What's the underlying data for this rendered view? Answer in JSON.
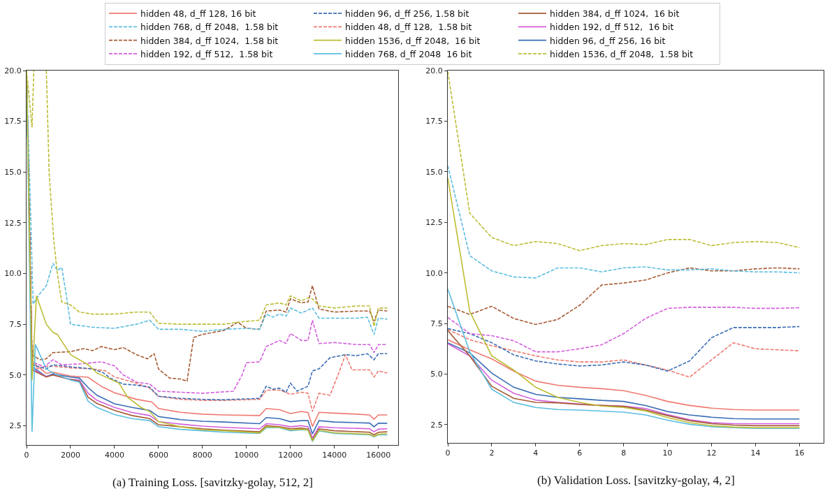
{
  "chart_data": [
    {
      "type": "line",
      "annotations": [
        "(a) Training Loss. [savitzky-golay, 512, 2]"
      ],
      "xlim": [
        0,
        16900
      ],
      "ylim": [
        1.55,
        20
      ],
      "xticks": [
        0,
        2000,
        4000,
        6000,
        8000,
        10000,
        12000,
        14000,
        16000
      ],
      "yticks": [
        {
          "value": 2.5,
          "label": "2.5"
        },
        {
          "value": 5,
          "label": "5.0"
        },
        {
          "value": 7.5,
          "label": "7.5"
        },
        {
          "value": 10,
          "label": "10.0"
        },
        {
          "value": 12.5,
          "label": "12.5"
        },
        {
          "value": 15,
          "label": "15.0"
        },
        {
          "value": 17.5,
          "label": "17.5"
        },
        {
          "value": 20,
          "label": "20.0"
        }
      ],
      "grid": false,
      "legend": "top",
      "marker": "none",
      "series": [
        {
          "name": "hidden 48, d_ff 128, 16 bit",
          "color": "#f07a72",
          "line_style": "solid",
          "x": [
            0,
            250,
            900,
            1200,
            2000,
            2800,
            3400,
            4000,
            5000,
            5700,
            6000,
            7000,
            8000,
            9000,
            10600,
            10900,
            11500,
            12000,
            12500,
            12800,
            13000,
            13300,
            14000,
            15000,
            15600,
            15800,
            16000,
            16400
          ],
          "values": [
            20,
            5.65,
            5.08,
            5.14,
            4.95,
            4.89,
            4.44,
            4.12,
            3.8,
            3.67,
            3.35,
            3.16,
            3.07,
            3.03,
            3.0,
            3.35,
            3.29,
            3.1,
            3.2,
            3.15,
            2.46,
            3.16,
            3.12,
            3.07,
            3.03,
            2.82,
            3.03,
            3.03
          ]
        },
        {
          "name": "hidden 48, d_ff 128,  1.58 bit",
          "color": "#f07a72",
          "line_style": "dashed",
          "x": [
            0,
            250,
            500,
            1000,
            2000,
            3000,
            3600,
            4000,
            5000,
            5600,
            6000,
            7000,
            8000,
            9000,
            10600,
            10900,
            11500,
            12000,
            12500,
            12800,
            13000,
            13300,
            13800,
            14200,
            14500,
            14800,
            15600,
            15800,
            16000,
            16400
          ],
          "values": [
            20,
            5.6,
            5.3,
            5.45,
            5.35,
            5.3,
            5.2,
            4.9,
            4.6,
            4.35,
            3.95,
            3.8,
            3.75,
            3.75,
            3.8,
            4.25,
            4.25,
            4.05,
            4.15,
            4.1,
            3.2,
            4.1,
            4.0,
            5.1,
            6.0,
            5.25,
            5.25,
            4.9,
            5.2,
            5.1
          ]
        },
        {
          "name": "hidden 96, d_ff 256, 16 bit",
          "color": "#3a6db5",
          "line_style": "solid",
          "x": [
            0,
            250,
            900,
            1200,
            2000,
            2400,
            2800,
            3200,
            4000,
            4800,
            5600,
            6000,
            7000,
            8000,
            9000,
            10600,
            10900,
            11500,
            12000,
            12500,
            12800,
            13000,
            13300,
            14000,
            15600,
            15800,
            16000,
            16400
          ],
          "values": [
            20,
            5.4,
            4.92,
            5.05,
            4.9,
            4.85,
            4.38,
            4.0,
            3.58,
            3.4,
            3.25,
            2.95,
            2.8,
            2.72,
            2.68,
            2.6,
            2.9,
            2.85,
            2.7,
            2.75,
            2.75,
            2.1,
            2.75,
            2.68,
            2.63,
            2.45,
            2.62,
            2.62
          ]
        },
        {
          "name": "hidden 96, d_ff 256, 1.58 bit",
          "color": "#3a6db5",
          "line_style": "dashed",
          "x": [
            0,
            250,
            900,
            1200,
            2000,
            3000,
            3500,
            3800,
            4400,
            5000,
            5600,
            6000,
            7000,
            8000,
            9000,
            10600,
            10900,
            11200,
            11500,
            11800,
            12000,
            12300,
            12800,
            13000,
            13300,
            13800,
            14500,
            15000,
            15500,
            15800,
            16000,
            16400
          ],
          "values": [
            20,
            5.5,
            5.3,
            5.5,
            5.4,
            5.3,
            5.1,
            4.85,
            4.55,
            4.5,
            4.4,
            3.95,
            3.85,
            3.8,
            3.78,
            3.85,
            4.45,
            4.3,
            4.35,
            4.15,
            4.6,
            4.2,
            4.45,
            5.2,
            5.3,
            5.85,
            6.0,
            5.95,
            6.05,
            5.75,
            6.05,
            6.05
          ]
        },
        {
          "name": "hidden 192, d_ff 512,  16 bit",
          "color": "#d35fdc",
          "line_style": "solid",
          "x": [
            0,
            250,
            900,
            1200,
            2000,
            2400,
            2800,
            3200,
            4000,
            4800,
            5600,
            6000,
            7000,
            8000,
            9000,
            10600,
            10900,
            11500,
            12000,
            12500,
            12800,
            13000,
            13300,
            14000,
            15600,
            15800,
            16000,
            16400
          ],
          "values": [
            20,
            5.3,
            4.92,
            5.0,
            4.78,
            4.75,
            4.1,
            3.75,
            3.4,
            3.15,
            3.0,
            2.7,
            2.58,
            2.48,
            2.42,
            2.35,
            2.6,
            2.55,
            2.45,
            2.5,
            2.45,
            1.9,
            2.45,
            2.4,
            2.35,
            2.2,
            2.33,
            2.35
          ]
        },
        {
          "name": "hidden 192, d_ff 512,  1.58 bit",
          "color": "#d35fdc",
          "line_style": "dashed",
          "x": [
            0,
            250,
            800,
            1200,
            1600,
            2500,
            3400,
            4000,
            4400,
            5000,
            5600,
            6000,
            7000,
            8000,
            9400,
            9800,
            10000,
            10600,
            10900,
            11500,
            11800,
            12000,
            12500,
            12800,
            13000,
            13300,
            14000,
            15000,
            15600,
            15800,
            16000,
            16400
          ],
          "values": [
            20,
            5.65,
            5.4,
            5.75,
            5.5,
            5.55,
            5.65,
            5.45,
            5.0,
            4.65,
            4.55,
            4.2,
            4.15,
            4.1,
            4.2,
            5.0,
            5.6,
            5.65,
            6.4,
            6.7,
            6.55,
            7.05,
            6.7,
            6.7,
            7.7,
            6.55,
            6.6,
            6.5,
            6.5,
            6.1,
            6.5,
            6.5
          ]
        },
        {
          "name": "hidden 384, d_ff 1024,  16 bit",
          "color": "#a65a33",
          "line_style": "solid",
          "x": [
            0,
            250,
            900,
            1200,
            2000,
            2400,
            2800,
            3200,
            4000,
            4800,
            5600,
            6000,
            7000,
            8000,
            9000,
            10600,
            10900,
            11500,
            12000,
            12500,
            12800,
            13000,
            13300,
            14000,
            15600,
            15800,
            16000,
            16400
          ],
          "values": [
            20,
            5.25,
            4.9,
            5.0,
            4.78,
            4.7,
            3.9,
            3.6,
            3.25,
            3.0,
            2.85,
            2.55,
            2.45,
            2.35,
            2.28,
            2.2,
            2.5,
            2.45,
            2.35,
            2.38,
            2.33,
            1.8,
            2.35,
            2.25,
            2.18,
            2.05,
            2.18,
            2.2
          ]
        },
        {
          "name": "hidden 384, d_ff 1024,  1.58 bit",
          "color": "#a65a33",
          "line_style": "dashed",
          "x": [
            0,
            250,
            600,
            900,
            1200,
            2000,
            2600,
            3000,
            3400,
            4000,
            4400,
            5000,
            5500,
            5800,
            6000,
            6500,
            7000,
            7300,
            7600,
            8000,
            9000,
            9600,
            10000,
            10600,
            10900,
            11500,
            11800,
            12000,
            12500,
            12800,
            13000,
            13300,
            14000,
            15000,
            15600,
            15800,
            16000,
            16400
          ],
          "values": [
            20,
            6.0,
            5.75,
            5.8,
            6.1,
            6.15,
            6.3,
            6.2,
            6.4,
            6.25,
            6.35,
            6.0,
            5.8,
            6.05,
            5.3,
            4.85,
            4.8,
            4.7,
            6.85,
            7.0,
            7.2,
            7.6,
            7.3,
            7.25,
            8.15,
            8.2,
            8.1,
            8.75,
            8.55,
            8.6,
            9.4,
            8.25,
            8.1,
            8.15,
            8.15,
            7.65,
            8.2,
            8.15
          ]
        },
        {
          "name": "hidden 768, d_ff 2048  16 bit",
          "color": "#5bbde0",
          "line_style": "solid",
          "x": [
            0,
            250,
            400,
            900,
            1200,
            2000,
            2400,
            2800,
            3200,
            4000,
            4800,
            5600,
            6000,
            7000,
            8000,
            9000,
            10600,
            10900,
            11500,
            12000,
            12500,
            12800,
            13000,
            13300,
            14000,
            15600,
            15800,
            16000,
            16400
          ],
          "values": [
            20,
            2.2,
            6.5,
            5.3,
            5.1,
            4.75,
            4.65,
            3.7,
            3.4,
            3.05,
            2.85,
            2.75,
            2.45,
            2.32,
            2.25,
            2.18,
            2.12,
            2.4,
            2.4,
            2.25,
            2.3,
            2.28,
            1.72,
            2.25,
            2.12,
            2.05,
            1.95,
            2.05,
            2.05
          ]
        },
        {
          "name": "hidden 768, d_ff 2048,  1.58 bit",
          "color": "#5bbde0",
          "line_style": "dashed",
          "x": [
            0,
            300,
            600,
            900,
            1200,
            1400,
            1600,
            1800,
            2000,
            3000,
            4000,
            5000,
            5600,
            6000,
            7000,
            8000,
            9000,
            10000,
            10600,
            10900,
            11200,
            11500,
            11800,
            12000,
            12500,
            12800,
            13000,
            13300,
            14000,
            15000,
            15500,
            15800,
            16000,
            16400
          ],
          "values": [
            20,
            8.5,
            9.0,
            9.4,
            10.5,
            10.15,
            10.3,
            9.0,
            7.5,
            7.35,
            7.3,
            7.5,
            7.7,
            7.25,
            7.25,
            7.15,
            7.25,
            7.3,
            7.25,
            8.0,
            7.85,
            8.0,
            7.9,
            8.3,
            8.05,
            8.2,
            8.3,
            7.8,
            7.8,
            7.8,
            7.85,
            7.0,
            7.8,
            7.75
          ]
        },
        {
          "name": "hidden 1536, d_ff 2048,  16 bit",
          "color": "#bcbd35",
          "line_style": "solid",
          "x": [
            0,
            250,
            450,
            900,
            1200,
            1400,
            2000,
            2800,
            3200,
            4000,
            4200,
            4600,
            5200,
            5600,
            6000,
            7000,
            8000,
            9000,
            10600,
            10900,
            11500,
            12000,
            12500,
            12800,
            13000,
            13300,
            14000,
            15600,
            15800,
            16000,
            16400
          ],
          "values": [
            20,
            4.75,
            8.9,
            7.5,
            7.1,
            7.0,
            6.0,
            5.5,
            5.1,
            4.7,
            4.6,
            3.9,
            3.4,
            3.2,
            2.7,
            2.45,
            2.3,
            2.25,
            2.15,
            2.45,
            2.42,
            2.3,
            2.33,
            2.3,
            1.75,
            2.28,
            2.15,
            2.08,
            1.97,
            2.08,
            2.1
          ]
        },
        {
          "name": "hidden 1536, d_ff 2048,  1.58 bit",
          "color": "#bcbd35",
          "line_style": "dashed",
          "x": [
            0,
            250,
            330,
            600,
            900,
            1030,
            1240,
            1400,
            1600,
            2000,
            2400,
            3000,
            4000,
            5000,
            5600,
            6000,
            7000,
            8000,
            9000,
            9600,
            10600,
            10900,
            11500,
            11800,
            12000,
            12500,
            12800,
            13000,
            13300,
            14000,
            15000,
            15600,
            15800,
            16000,
            16400
          ],
          "values": [
            20,
            17.2,
            20,
            null,
            20,
            14.9,
            11.6,
            10.0,
            8.6,
            8.45,
            8.1,
            8.0,
            8.0,
            8.1,
            8.1,
            7.55,
            7.5,
            7.5,
            7.5,
            7.6,
            7.7,
            8.45,
            8.55,
            8.45,
            8.9,
            8.65,
            8.8,
            8.75,
            8.4,
            8.3,
            8.4,
            8.4,
            7.4,
            8.3,
            8.3
          ]
        }
      ]
    },
    {
      "type": "line",
      "annotations": [
        "(b) Validation Loss. [savitzky-golay, 4, 2]"
      ],
      "xlim": [
        0,
        17.1
      ],
      "ylim": [
        1.6,
        20
      ],
      "xticks": [
        0,
        2,
        4,
        6,
        8,
        10,
        12,
        14,
        16
      ],
      "yticks": [
        {
          "value": 2.5,
          "label": "2.5"
        },
        {
          "value": 5,
          "label": "5.0"
        },
        {
          "value": 7.5,
          "label": "7.5"
        },
        {
          "value": 10,
          "label": "10.0"
        },
        {
          "value": 12.5,
          "label": "12.5"
        },
        {
          "value": 15,
          "label": "15.0"
        },
        {
          "value": 17.5,
          "label": "17.5"
        },
        {
          "value": 20,
          "label": "20.0"
        }
      ],
      "grid": false,
      "marker": "none",
      "x": [
        0,
        1,
        2,
        3,
        4,
        5,
        6,
        7,
        8,
        9,
        10,
        11,
        12,
        13,
        14,
        15,
        16
      ],
      "series": [
        {
          "color": "#f07a72",
          "line_style": "solid",
          "values": [
            6.7,
            6.2,
            5.75,
            5.15,
            4.65,
            4.45,
            4.35,
            4.28,
            4.18,
            3.95,
            3.65,
            3.45,
            3.32,
            3.25,
            3.22,
            3.22,
            3.22
          ]
        },
        {
          "color": "#f07a72",
          "line_style": "dashed",
          "values": [
            7.2,
            6.7,
            6.4,
            6.15,
            5.9,
            5.7,
            5.6,
            5.6,
            5.7,
            5.45,
            5.2,
            4.85,
            5.7,
            6.55,
            6.25,
            6.2,
            6.15
          ]
        },
        {
          "color": "#3a6db5",
          "line_style": "solid",
          "values": [
            6.55,
            6.05,
            5.05,
            4.35,
            4.0,
            3.85,
            3.78,
            3.7,
            3.65,
            3.45,
            3.15,
            2.98,
            2.87,
            2.8,
            2.78,
            2.78,
            2.78
          ]
        },
        {
          "color": "#3a6db5",
          "line_style": "dashed",
          "values": [
            7.25,
            7.0,
            6.55,
            5.95,
            5.65,
            5.5,
            5.4,
            5.45,
            5.6,
            5.45,
            5.15,
            5.65,
            6.8,
            7.3,
            7.3,
            7.3,
            7.35
          ]
        },
        {
          "color": "#d35fdc",
          "line_style": "solid",
          "values": [
            6.5,
            5.9,
            4.7,
            4.05,
            3.72,
            3.6,
            3.52,
            3.45,
            3.42,
            3.3,
            3.0,
            2.75,
            2.6,
            2.55,
            2.55,
            2.55,
            2.55
          ]
        },
        {
          "color": "#d35fdc",
          "line_style": "dashed",
          "values": [
            7.8,
            7.0,
            6.9,
            6.65,
            6.1,
            6.1,
            6.25,
            6.45,
            7.0,
            7.75,
            8.25,
            8.3,
            8.3,
            8.3,
            8.25,
            8.25,
            8.28
          ]
        },
        {
          "color": "#a65a33",
          "line_style": "solid",
          "values": [
            7.15,
            5.9,
            4.4,
            3.8,
            3.6,
            3.58,
            3.5,
            3.45,
            3.4,
            3.22,
            2.95,
            2.7,
            2.55,
            2.48,
            2.45,
            2.45,
            2.45
          ]
        },
        {
          "color": "#a65a33",
          "line_style": "dashed",
          "values": [
            8.35,
            7.95,
            8.35,
            7.75,
            7.45,
            7.7,
            8.4,
            9.4,
            9.5,
            9.65,
            10.0,
            10.25,
            10.1,
            10.1,
            10.2,
            10.25,
            10.2
          ]
        },
        {
          "color": "#5bbde0",
          "line_style": "solid",
          "values": [
            9.2,
            6.1,
            4.25,
            3.6,
            3.35,
            3.25,
            3.22,
            3.17,
            3.12,
            2.98,
            2.72,
            2.52,
            2.4,
            2.35,
            2.32,
            2.32,
            2.32
          ]
        },
        {
          "color": "#5bbde0",
          "line_style": "dashed",
          "values": [
            15.3,
            10.85,
            10.1,
            9.8,
            9.75,
            10.25,
            10.25,
            10.05,
            10.25,
            10.3,
            10.15,
            10.15,
            10.2,
            10.1,
            10.05,
            10.05,
            10.0
          ]
        },
        {
          "color": "#bcbd35",
          "line_style": "solid",
          "values": [
            14.7,
            8.1,
            5.9,
            5.2,
            4.35,
            3.85,
            3.6,
            3.42,
            3.35,
            3.18,
            2.85,
            2.6,
            2.45,
            2.38,
            2.35,
            2.35,
            2.35
          ]
        },
        {
          "color": "#bcbd35",
          "line_style": "dashed",
          "values": [
            19.95,
            12.95,
            11.75,
            11.35,
            11.55,
            11.45,
            11.1,
            11.35,
            11.45,
            11.4,
            11.65,
            11.65,
            11.35,
            11.5,
            11.55,
            11.5,
            11.25
          ]
        }
      ]
    }
  ]
}
